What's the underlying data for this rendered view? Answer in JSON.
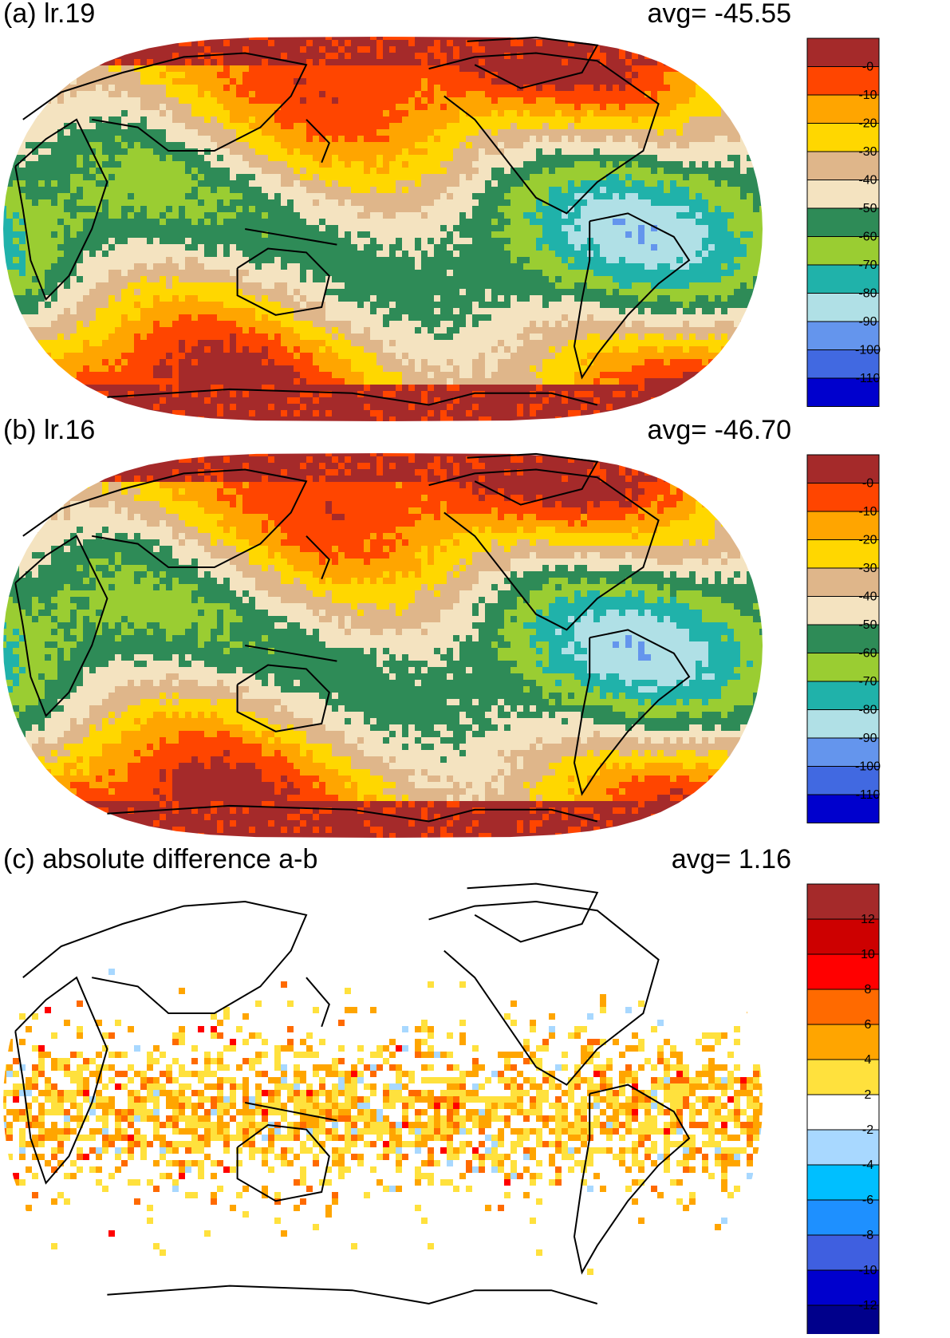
{
  "panels": [
    {
      "label": "(a) lr.19",
      "avg_label": "avg=  -45.55",
      "avg": -45.55,
      "kind": "field",
      "colorbar": {
        "colors": [
          "#a52a2a",
          "#ff4500",
          "#ffa500",
          "#ffd700",
          "#dfb68a",
          "#f4e3c0",
          "#2e8b57",
          "#9acd32",
          "#20b2aa",
          "#b0e0e6",
          "#6495ed",
          "#4169e1",
          "#0000cd"
        ],
        "labels": [
          "-0",
          "-10",
          "-20",
          "-30",
          "-40",
          "-50",
          "-60",
          "-70",
          "-80",
          "-90",
          "-100",
          "-110"
        ]
      }
    },
    {
      "label": "(b) lr.16",
      "avg_label": "avg=  -46.70",
      "avg": -46.7,
      "kind": "field",
      "colorbar": {
        "colors": [
          "#a52a2a",
          "#ff4500",
          "#ffa500",
          "#ffd700",
          "#dfb68a",
          "#f4e3c0",
          "#2e8b57",
          "#9acd32",
          "#20b2aa",
          "#b0e0e6",
          "#6495ed",
          "#4169e1",
          "#0000cd"
        ],
        "labels": [
          "-0",
          "-10",
          "-20",
          "-30",
          "-40",
          "-50",
          "-60",
          "-70",
          "-80",
          "-90",
          "-100",
          "-110"
        ]
      }
    },
    {
      "label": "(c) absolute difference a-b",
      "avg_label": "avg=    1.16",
      "avg": 1.16,
      "kind": "diff",
      "colorbar": {
        "colors": [
          "#a52a2a",
          "#cd0000",
          "#ff0000",
          "#ff6a00",
          "#ffa500",
          "#ffe13d",
          "#ffffff",
          "#a8d8ff",
          "#00bfff",
          "#1e90ff",
          "#3f5fe0",
          "#0000cd",
          "#00008b"
        ],
        "labels": [
          "12",
          "10",
          "8",
          "6",
          "4",
          "2",
          "-2",
          "-4",
          "-6",
          "-8",
          "-10",
          "-12"
        ]
      }
    }
  ]
}
